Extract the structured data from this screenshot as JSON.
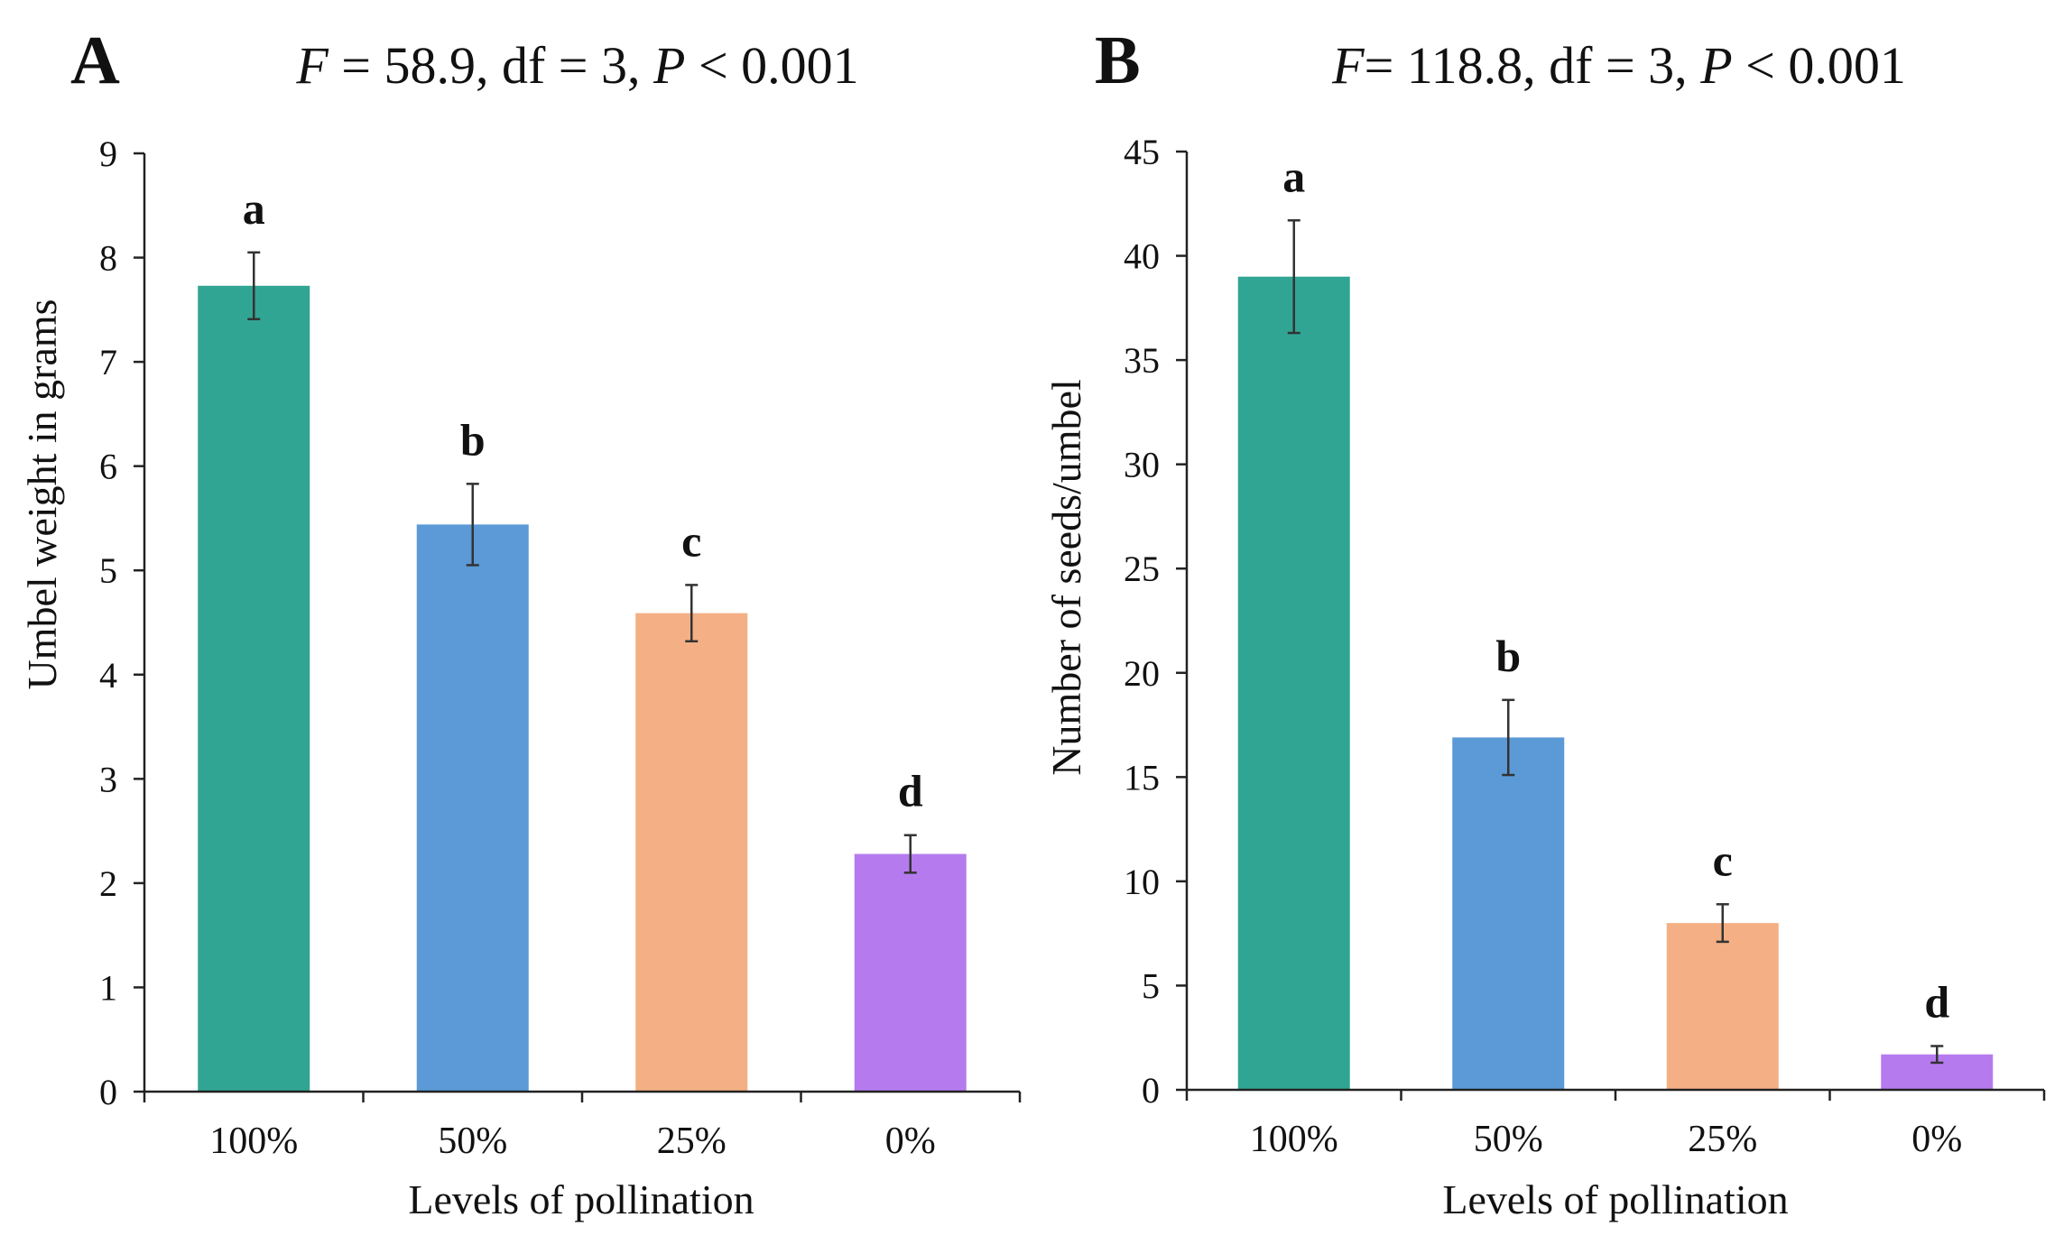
{
  "chart_data": [
    {
      "type": "bar",
      "panel_label": "A",
      "stat": {
        "F": "F",
        "rest1": " = 58.9, df = 3, ",
        "P": "P",
        "rest2": " < 0.001"
      },
      "xlabel": "Levels of pollination",
      "ylabel": "Umbel weight in grams",
      "ylim": [
        0,
        9
      ],
      "yticks": [
        "0",
        "1",
        "2",
        "3",
        "4",
        "5",
        "6",
        "7",
        "8",
        "9"
      ],
      "categories": [
        "100%",
        "50%",
        "25%",
        "0%"
      ],
      "values": [
        7.73,
        5.44,
        4.59,
        2.28
      ],
      "errors": [
        0.32,
        0.39,
        0.27,
        0.18
      ],
      "letters": [
        "a",
        "b",
        "c",
        "d"
      ],
      "colors": [
        "#31a593",
        "#5b9ad6",
        "#f4b084",
        "#b57bee"
      ],
      "grid": false
    },
    {
      "type": "bar",
      "panel_label": "B",
      "stat": {
        "F": "F",
        "rest1": "= 118.8, df = 3, ",
        "P": "P",
        "rest2": " < 0.001"
      },
      "xlabel": "Levels of pollination",
      "ylabel": "Number of seeds/umbel",
      "ylim": [
        0,
        45
      ],
      "yticks": [
        "0",
        "5",
        "10",
        "15",
        "20",
        "25",
        "30",
        "35",
        "40",
        "45"
      ],
      "categories": [
        "100%",
        "50%",
        "25%",
        "0%"
      ],
      "values": [
        39.0,
        16.9,
        8.0,
        1.7
      ],
      "errors": [
        2.7,
        1.8,
        0.9,
        0.4
      ],
      "letters": [
        "a",
        "b",
        "c",
        "d"
      ],
      "colors": [
        "#31a593",
        "#5b9ad6",
        "#f4b084",
        "#b57bee"
      ],
      "grid": false
    }
  ]
}
